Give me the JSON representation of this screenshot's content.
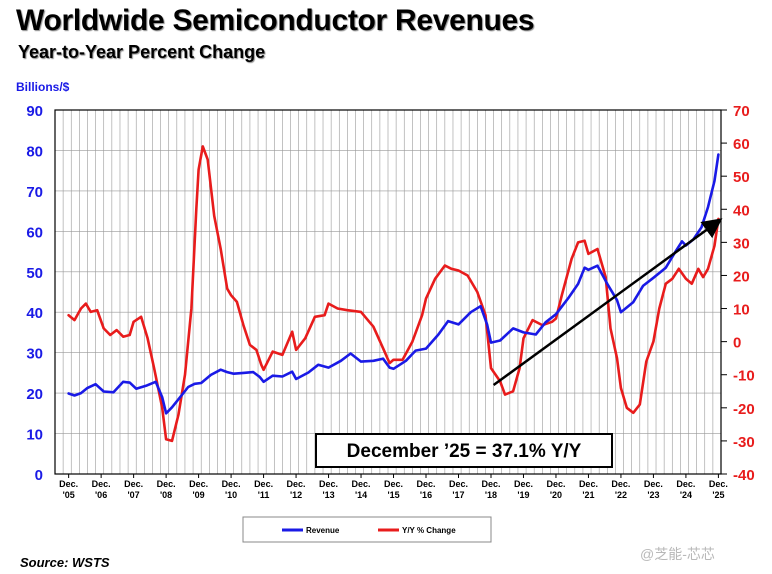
{
  "title": "Worldwide Semiconductor Revenues",
  "subtitle": "Year-to-Year Percent Change",
  "ylabel_left": "Billions/$",
  "source": "Source: WSTS",
  "watermark": "@芝能-芯芯",
  "annotation": "December ’25 = 37.1% Y/Y",
  "colors": {
    "revenue": "#1a1ae6",
    "yoy": "#e81c1c",
    "trend": "#000000",
    "grid": "#999999",
    "left_axis": "#1a1ae6",
    "right_axis": "#e81c1c"
  },
  "chart_data": {
    "type": "line",
    "grid": true,
    "legend_position": "bottom-center",
    "x_ticks": [
      {
        "line1": "Dec.",
        "line2": "'05"
      },
      {
        "line1": "Dec.",
        "line2": "'06"
      },
      {
        "line1": "Dec.",
        "line2": "'07"
      },
      {
        "line1": "Dec.",
        "line2": "'08"
      },
      {
        "line1": "Dec.",
        "line2": "'09"
      },
      {
        "line1": "Dec.",
        "line2": "'10"
      },
      {
        "line1": "Dec.",
        "line2": "'11"
      },
      {
        "line1": "Dec.",
        "line2": "'12"
      },
      {
        "line1": "Dec.",
        "line2": "'13"
      },
      {
        "line1": "Dec.",
        "line2": "'14"
      },
      {
        "line1": "Dec.",
        "line2": "'15"
      },
      {
        "line1": "Dec.",
        "line2": "'16"
      },
      {
        "line1": "Dec.",
        "line2": "'17"
      },
      {
        "line1": "Dec.",
        "line2": "'18"
      },
      {
        "line1": "Dec.",
        "line2": "'19"
      },
      {
        "line1": "Dec.",
        "line2": "'20"
      },
      {
        "line1": "Dec.",
        "line2": "'21"
      },
      {
        "line1": "Dec.",
        "line2": "'22"
      },
      {
        "line1": "Dec.",
        "line2": "'23"
      },
      {
        "line1": "Dec.",
        "line2": "'24"
      },
      {
        "line1": "Dec.",
        "line2": "'25"
      }
    ],
    "y_left": {
      "min": 0,
      "max": 90,
      "ticks": [
        "0",
        "10",
        "20",
        "30",
        "40",
        "50",
        "60",
        "70",
        "80",
        "90"
      ]
    },
    "y_right": {
      "min": -40,
      "max": 70,
      "ticks": [
        "-40",
        "-30",
        "-20",
        "-10",
        "0",
        "10",
        "20",
        "30",
        "40",
        "50",
        "60",
        "70"
      ]
    },
    "series": [
      {
        "name": "Revenue",
        "axis": "left",
        "points": [
          [
            2005.92,
            19.9
          ],
          [
            2006.1,
            19.4
          ],
          [
            2006.3,
            20.0
          ],
          [
            2006.5,
            21.3
          ],
          [
            2006.75,
            22.2
          ],
          [
            2007.0,
            20.4
          ],
          [
            2007.3,
            20.2
          ],
          [
            2007.6,
            22.8
          ],
          [
            2007.8,
            22.6
          ],
          [
            2008.0,
            21.1
          ],
          [
            2008.3,
            21.8
          ],
          [
            2008.6,
            22.8
          ],
          [
            2008.8,
            19.0
          ],
          [
            2008.92,
            15.0
          ],
          [
            2009.1,
            16.5
          ],
          [
            2009.3,
            18.5
          ],
          [
            2009.6,
            21.5
          ],
          [
            2009.8,
            22.3
          ],
          [
            2010.0,
            22.5
          ],
          [
            2010.3,
            24.5
          ],
          [
            2010.6,
            25.8
          ],
          [
            2010.8,
            25.2
          ],
          [
            2011.0,
            24.8
          ],
          [
            2011.3,
            25.0
          ],
          [
            2011.6,
            25.2
          ],
          [
            2011.8,
            24.0
          ],
          [
            2011.92,
            22.8
          ],
          [
            2012.2,
            24.3
          ],
          [
            2012.5,
            24.1
          ],
          [
            2012.8,
            25.3
          ],
          [
            2012.92,
            23.5
          ],
          [
            2013.3,
            25.1
          ],
          [
            2013.6,
            27.0
          ],
          [
            2013.92,
            26.3
          ],
          [
            2014.3,
            28.0
          ],
          [
            2014.6,
            29.8
          ],
          [
            2014.92,
            27.8
          ],
          [
            2015.3,
            28.0
          ],
          [
            2015.6,
            28.5
          ],
          [
            2015.8,
            26.3
          ],
          [
            2015.92,
            26.0
          ],
          [
            2016.3,
            28.0
          ],
          [
            2016.6,
            30.5
          ],
          [
            2016.92,
            31.0
          ],
          [
            2017.3,
            34.5
          ],
          [
            2017.6,
            37.8
          ],
          [
            2017.92,
            37.0
          ],
          [
            2018.3,
            40.0
          ],
          [
            2018.6,
            41.5
          ],
          [
            2018.8,
            37.0
          ],
          [
            2018.92,
            32.5
          ],
          [
            2019.2,
            33.0
          ],
          [
            2019.6,
            36.0
          ],
          [
            2019.92,
            35.0
          ],
          [
            2020.3,
            34.5
          ],
          [
            2020.6,
            37.5
          ],
          [
            2020.92,
            39.5
          ],
          [
            2021.3,
            43.5
          ],
          [
            2021.6,
            47.0
          ],
          [
            2021.8,
            51.0
          ],
          [
            2021.92,
            50.5
          ],
          [
            2022.2,
            51.5
          ],
          [
            2022.5,
            47.0
          ],
          [
            2022.8,
            43.0
          ],
          [
            2022.92,
            40.0
          ],
          [
            2023.3,
            42.5
          ],
          [
            2023.6,
            46.5
          ],
          [
            2023.92,
            48.5
          ],
          [
            2024.3,
            51.0
          ],
          [
            2024.6,
            55.0
          ],
          [
            2024.8,
            57.5
          ],
          [
            2024.92,
            56.5
          ],
          [
            2025.15,
            58.0
          ],
          [
            2025.4,
            61.0
          ],
          [
            2025.6,
            66.0
          ],
          [
            2025.8,
            72.5
          ],
          [
            2025.92,
            79.0
          ]
        ]
      },
      {
        "name": "Y/Y % Change",
        "axis": "right",
        "points": [
          [
            2005.92,
            8.0
          ],
          [
            2006.1,
            6.5
          ],
          [
            2006.3,
            10.0
          ],
          [
            2006.45,
            11.5
          ],
          [
            2006.6,
            9.0
          ],
          [
            2006.8,
            9.5
          ],
          [
            2007.0,
            4.0
          ],
          [
            2007.2,
            2.0
          ],
          [
            2007.4,
            3.5
          ],
          [
            2007.6,
            1.5
          ],
          [
            2007.8,
            2.0
          ],
          [
            2007.92,
            6.0
          ],
          [
            2008.15,
            7.5
          ],
          [
            2008.35,
            1.0
          ],
          [
            2008.55,
            -8.0
          ],
          [
            2008.8,
            -20.0
          ],
          [
            2008.92,
            -29.5
          ],
          [
            2009.1,
            -30.0
          ],
          [
            2009.3,
            -22.0
          ],
          [
            2009.5,
            -10.0
          ],
          [
            2009.7,
            10.0
          ],
          [
            2009.85,
            40.0
          ],
          [
            2009.92,
            52.0
          ],
          [
            2010.05,
            59.0
          ],
          [
            2010.2,
            55.0
          ],
          [
            2010.4,
            38.0
          ],
          [
            2010.6,
            28.0
          ],
          [
            2010.8,
            16.0
          ],
          [
            2010.92,
            14.0
          ],
          [
            2011.1,
            12.0
          ],
          [
            2011.3,
            5.0
          ],
          [
            2011.5,
            -1.0
          ],
          [
            2011.7,
            -2.5
          ],
          [
            2011.85,
            -7.0
          ],
          [
            2011.92,
            -8.5
          ],
          [
            2012.2,
            -3.0
          ],
          [
            2012.5,
            -4.0
          ],
          [
            2012.8,
            3.0
          ],
          [
            2012.92,
            -2.5
          ],
          [
            2013.2,
            1.0
          ],
          [
            2013.5,
            7.5
          ],
          [
            2013.8,
            8.0
          ],
          [
            2013.92,
            11.5
          ],
          [
            2014.2,
            10.0
          ],
          [
            2014.5,
            9.5
          ],
          [
            2014.92,
            9.0
          ],
          [
            2015.3,
            4.5
          ],
          [
            2015.6,
            -2.0
          ],
          [
            2015.8,
            -6.5
          ],
          [
            2015.92,
            -5.5
          ],
          [
            2016.2,
            -5.5
          ],
          [
            2016.5,
            0.0
          ],
          [
            2016.8,
            8.0
          ],
          [
            2016.92,
            13.0
          ],
          [
            2017.2,
            19.0
          ],
          [
            2017.5,
            23.0
          ],
          [
            2017.7,
            22.0
          ],
          [
            2017.92,
            21.5
          ],
          [
            2018.2,
            20.0
          ],
          [
            2018.5,
            15.0
          ],
          [
            2018.75,
            8.0
          ],
          [
            2018.92,
            -8.0
          ],
          [
            2019.2,
            -12.0
          ],
          [
            2019.35,
            -16.0
          ],
          [
            2019.6,
            -15.0
          ],
          [
            2019.8,
            -8.0
          ],
          [
            2019.92,
            1.0
          ],
          [
            2020.2,
            6.5
          ],
          [
            2020.5,
            5.0
          ],
          [
            2020.8,
            6.0
          ],
          [
            2020.92,
            7.0
          ],
          [
            2021.1,
            14.0
          ],
          [
            2021.4,
            25.0
          ],
          [
            2021.6,
            30.0
          ],
          [
            2021.8,
            30.5
          ],
          [
            2021.92,
            26.5
          ],
          [
            2022.2,
            28.0
          ],
          [
            2022.45,
            19.5
          ],
          [
            2022.6,
            4.0
          ],
          [
            2022.8,
            -5.0
          ],
          [
            2022.92,
            -14.0
          ],
          [
            2023.1,
            -20.0
          ],
          [
            2023.3,
            -21.5
          ],
          [
            2023.5,
            -19.0
          ],
          [
            2023.7,
            -6.0
          ],
          [
            2023.92,
            0.0
          ],
          [
            2024.1,
            10.0
          ],
          [
            2024.3,
            17.5
          ],
          [
            2024.5,
            19.0
          ],
          [
            2024.7,
            22.0
          ],
          [
            2024.92,
            19.0
          ],
          [
            2025.1,
            17.5
          ],
          [
            2025.3,
            22.0
          ],
          [
            2025.45,
            19.5
          ],
          [
            2025.6,
            22.0
          ],
          [
            2025.8,
            29.0
          ],
          [
            2025.92,
            37.1
          ]
        ]
      }
    ],
    "trend_line": {
      "from": [
        2019.0,
        22.0
      ],
      "to": [
        2025.92,
        62.5
      ],
      "axis": "left"
    },
    "legend": [
      {
        "key": "revenue",
        "label": "Revenue"
      },
      {
        "key": "yoy",
        "label": "Y/Y % Change"
      }
    ]
  }
}
